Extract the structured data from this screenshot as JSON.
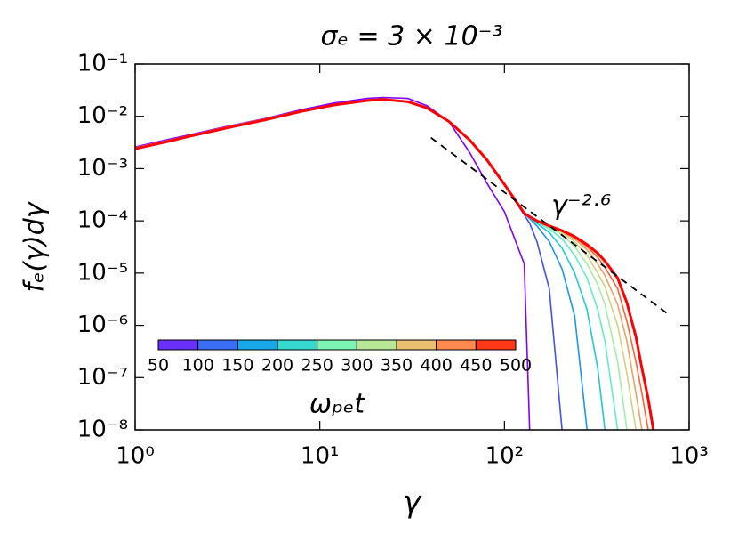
{
  "chart_data": {
    "type": "line",
    "title": "σₑ = 3 × 10⁻³",
    "x_label": "γ",
    "y_label": "fₑ(γ)dγ",
    "log_x": true,
    "log_y": true,
    "xlim": [
      1,
      1000
    ],
    "ylim": [
      1e-08,
      0.1
    ],
    "xticks": [
      {
        "value": 1,
        "label": "10⁰"
      },
      {
        "value": 10,
        "label": "10¹"
      },
      {
        "value": 100,
        "label": "10²"
      },
      {
        "value": 1000,
        "label": "10³"
      }
    ],
    "yticks": [
      {
        "value": 1e-08,
        "label": "10⁻⁸"
      },
      {
        "value": 1e-07,
        "label": "10⁻⁷"
      },
      {
        "value": 1e-06,
        "label": "10⁻⁶"
      },
      {
        "value": 1e-05,
        "label": "10⁻⁵"
      },
      {
        "value": 0.0001,
        "label": "10⁻⁴"
      },
      {
        "value": 0.001,
        "label": "10⁻³"
      },
      {
        "value": 0.01,
        "label": "10⁻²"
      },
      {
        "value": 0.1,
        "label": "10⁻¹"
      }
    ],
    "x": [
      1,
      1.5,
      2,
      3,
      5,
      8,
      12,
      18,
      22,
      30,
      38,
      50,
      65,
      80,
      100,
      128,
      137,
      150,
      175,
      205,
      240,
      280,
      320,
      350,
      410,
      460,
      515,
      555,
      600,
      640
    ],
    "series": [
      {
        "color": "#7f00ff",
        "values": [
          0.0026,
          0.0036,
          0.0045,
          0.0062,
          0.009,
          0.0135,
          0.018,
          0.022,
          0.023,
          0.022,
          0.016,
          0.008,
          0.002,
          0.00054,
          0.00015,
          1.5e-05,
          1e-08,
          null,
          null,
          null,
          null,
          null,
          null,
          null,
          null,
          null,
          null,
          null,
          null,
          null
        ]
      },
      {
        "color": "#4050f5",
        "values": [
          0.0025,
          0.0034,
          0.0043,
          0.006,
          0.0088,
          0.0128,
          0.0168,
          0.0203,
          0.0212,
          0.0192,
          0.0147,
          0.008,
          0.0035,
          0.0015,
          0.0005,
          0.00013,
          9e-05,
          4e-05,
          5e-06,
          1e-08,
          null,
          null,
          null,
          null,
          null,
          null,
          null,
          null,
          null,
          null
        ]
      },
      {
        "color": "#1a96f0",
        "values": [
          0.0025,
          0.0034,
          0.0043,
          0.006,
          0.0088,
          0.0128,
          0.0168,
          0.0203,
          0.0212,
          0.0192,
          0.0147,
          0.008,
          0.0035,
          0.0015,
          0.0005,
          0.00014,
          0.00011,
          8e-05,
          4e-05,
          1.2e-05,
          1.5e-06,
          1e-08,
          null,
          null,
          null,
          null,
          null,
          null,
          null,
          null
        ]
      },
      {
        "color": "#20c8dc",
        "values": [
          0.0025,
          0.0034,
          0.0043,
          0.006,
          0.0088,
          0.0128,
          0.0168,
          0.0203,
          0.0212,
          0.0192,
          0.0147,
          0.008,
          0.0035,
          0.0015,
          0.0005,
          0.00014,
          0.000115,
          9e-05,
          6e-05,
          3e-05,
          1e-05,
          2e-06,
          1.5e-07,
          1e-08,
          null,
          null,
          null,
          null,
          null,
          null
        ]
      },
      {
        "color": "#60f0c0",
        "values": [
          0.0025,
          0.0034,
          0.0043,
          0.006,
          0.0088,
          0.0128,
          0.0168,
          0.0203,
          0.0212,
          0.0192,
          0.0147,
          0.008,
          0.0035,
          0.0015,
          0.0005,
          0.00014,
          0.00012,
          9.5e-05,
          7e-05,
          4.5e-05,
          2.2e-05,
          8e-06,
          2e-06,
          5e-07,
          1e-08,
          null,
          null,
          null,
          null,
          null
        ]
      },
      {
        "color": "#a0f0a0",
        "values": [
          0.0025,
          0.0034,
          0.0043,
          0.006,
          0.0088,
          0.0128,
          0.0168,
          0.0203,
          0.0212,
          0.0192,
          0.0147,
          0.008,
          0.0035,
          0.0015,
          0.0005,
          0.00014,
          0.00012,
          0.0001,
          7.5e-05,
          5.5e-05,
          3.2e-05,
          1.5e-05,
          6e-06,
          2.5e-06,
          2e-07,
          1e-08,
          null,
          null,
          null,
          null
        ]
      },
      {
        "color": "#d4d080",
        "values": [
          0.0025,
          0.0034,
          0.0043,
          0.006,
          0.0088,
          0.0128,
          0.0168,
          0.0203,
          0.0212,
          0.0192,
          0.0147,
          0.008,
          0.0035,
          0.0015,
          0.0005,
          0.00014,
          0.00012,
          0.0001,
          7.8e-05,
          6e-05,
          4e-05,
          2.2e-05,
          1e-05,
          5.5e-06,
          1e-06,
          1.2e-07,
          1e-08,
          null,
          null,
          null
        ]
      },
      {
        "color": "#f0a060",
        "values": [
          0.0025,
          0.0034,
          0.0043,
          0.006,
          0.0088,
          0.0128,
          0.0168,
          0.0203,
          0.0212,
          0.0192,
          0.0147,
          0.008,
          0.0035,
          0.0015,
          0.0005,
          0.00014,
          0.00012,
          0.0001,
          8e-05,
          6.2e-05,
          4.5e-05,
          2.8e-05,
          1.5e-05,
          9e-06,
          2.5e-06,
          5e-07,
          5e-08,
          1e-08,
          null,
          null
        ]
      },
      {
        "color": "#ff6030",
        "values": [
          0.0025,
          0.0034,
          0.0043,
          0.006,
          0.0088,
          0.0128,
          0.0168,
          0.0203,
          0.0212,
          0.0192,
          0.0147,
          0.008,
          0.0035,
          0.0015,
          0.0005,
          0.00014,
          0.00012,
          0.0001,
          8e-05,
          6.4e-05,
          4.8e-05,
          3.2e-05,
          2e-05,
          1.3e-05,
          5e-06,
          1.2e-06,
          2e-07,
          5e-08,
          1e-08,
          null
        ]
      },
      {
        "color": "#ff0000",
        "values": [
          0.0024,
          0.0033,
          0.0042,
          0.0058,
          0.0085,
          0.0125,
          0.0165,
          0.02,
          0.021,
          0.019,
          0.0145,
          0.008,
          0.0035,
          0.0015,
          0.0005,
          0.00014,
          0.00012,
          0.0001,
          8e-05,
          6.5e-05,
          5e-05,
          3.5e-05,
          2.4e-05,
          1.7e-05,
          8e-06,
          2.7e-06,
          6e-07,
          1.5e-07,
          4e-08,
          1e-08
        ]
      }
    ],
    "reference_line": {
      "x": [
        40,
        760
      ],
      "values": [
        0.0039,
        1.7e-06
      ],
      "color": "#000000",
      "style": "dashed",
      "label": "γ⁻²·⁶"
    },
    "colorbar": {
      "label": "ωₚₑt",
      "ticks": [
        50,
        100,
        150,
        200,
        250,
        300,
        350,
        400,
        450,
        500
      ],
      "colors": [
        "#6a2ff9",
        "#3a6ef6",
        "#18a8e8",
        "#36d8d0",
        "#7cf4b4",
        "#b8e896",
        "#e8c070",
        "#ff8a50",
        "#ff3818"
      ]
    }
  }
}
